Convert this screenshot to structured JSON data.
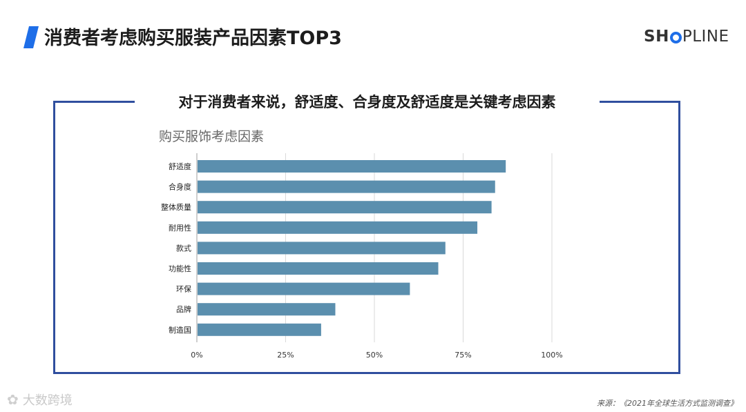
{
  "header": {
    "title": "消费者考虑购买服装产品因素TOP3",
    "brand_prefix": "SH",
    "brand_suffix": "PLINE"
  },
  "panel": {
    "subtitle": "对于消费者来说，舒适度、合身度及舒适度是关键考虑因素"
  },
  "chart_data": {
    "type": "bar",
    "orientation": "horizontal",
    "title": "购买服饰考虑因素",
    "categories": [
      "舒适度",
      "合身度",
      "整体质量",
      "耐用性",
      "款式",
      "功能性",
      "环保",
      "品牌",
      "制造国"
    ],
    "values": [
      0.87,
      0.84,
      0.83,
      0.79,
      0.7,
      0.68,
      0.6,
      0.39,
      0.35
    ],
    "xlim": [
      0,
      1
    ],
    "x_ticks": [
      "0%",
      "25%",
      "50%",
      "75%",
      "100%"
    ],
    "grid": true,
    "bar_color": "#5b8fae",
    "grid_color": "#d9d9d9"
  },
  "footer": {
    "watermark": "大数跨境",
    "source": "来源：《2021年全球生活方式监测调查》"
  },
  "colors": {
    "accent": "#1e6ee8",
    "panel_border": "#2f4e9e"
  }
}
